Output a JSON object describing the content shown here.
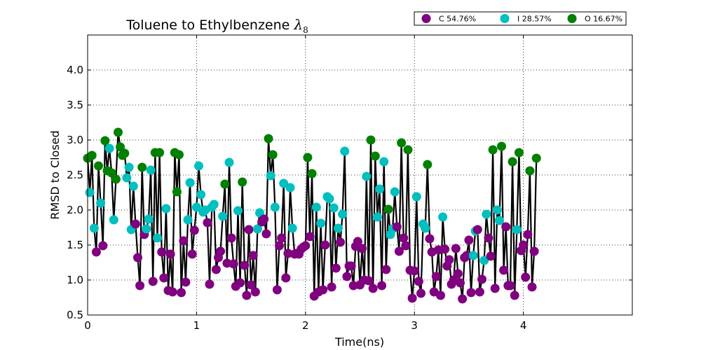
{
  "chart_data": {
    "type": "line",
    "title": "Toluene to Ethylbenzene",
    "title_symbol": "λ",
    "title_subscript": "8",
    "xlabel": "Time(ns)",
    "ylabel": "RMSD to Closed",
    "xlim": [
      0,
      5
    ],
    "ylim": [
      0.5,
      4.5
    ],
    "xticks": [
      0,
      1,
      2,
      3,
      4
    ],
    "yticks": [
      0.5,
      1.0,
      1.5,
      2.0,
      2.5,
      3.0,
      3.5,
      4.0
    ],
    "xtick_labels": [
      "0",
      "1",
      "2",
      "3",
      "4"
    ],
    "ytick_labels": [
      "0.5",
      "1.0",
      "1.5",
      "2.0",
      "2.5",
      "3.0",
      "3.5",
      "4.0"
    ],
    "grid": true,
    "legend_position": "top-right",
    "line_color": "#000000",
    "legend": [
      {
        "label": "C 54.76%",
        "color": "#800080"
      },
      {
        "label": "I 28.57%",
        "color": "#00bfbf"
      },
      {
        "label": "O 16.67%",
        "color": "#008000"
      }
    ],
    "state_colors": {
      "C": "#800080",
      "I": "#00bfbf",
      "O": "#008000"
    },
    "x_step": 0.02,
    "y": [
      2.74,
      2.25,
      2.78,
      1.74,
      1.4,
      2.63,
      2.1,
      1.49,
      2.99,
      2.56,
      2.88,
      2.53,
      1.86,
      2.44,
      3.11,
      2.9,
      2.78,
      2.81,
      2.46,
      2.61,
      1.72,
      2.34,
      1.8,
      1.32,
      0.92,
      2.61,
      1.65,
      1.73,
      1.87,
      2.57,
      0.98,
      2.82,
      1.6,
      2.82,
      1.4,
      1.03,
      2.02,
      0.85,
      1.37,
      0.83,
      2.82,
      2.26,
      2.79,
      0.82,
      1.56,
      0.97,
      1.86,
      2.39,
      1.37,
      1.71,
      2.04,
      2.63,
      2.22,
      1.97,
      2.0,
      1.82,
      0.94,
      2.04,
      2.08,
      1.15,
      1.32,
      1.41,
      1.91,
      2.37,
      1.24,
      2.68,
      1.6,
      1.23,
      0.91,
      1.99,
      0.96,
      2.4,
      1.21,
      0.78,
      1.72,
      0.93,
      1.35,
      0.83,
      1.73,
      1.96,
      1.83,
      1.87,
      1.66,
      3.02,
      2.49,
      2.79,
      2.04,
      0.86,
      1.49,
      1.6,
      2.38,
      1.03,
      1.38,
      2.32,
      1.74,
      1.37,
      1.38,
      1.37,
      1.44,
      1.47,
      1.49,
      2.75,
      1.62,
      2.52,
      0.77,
      2.04,
      0.83,
      1.81,
      0.86,
      1.5,
      2.19,
      2.16,
      0.9,
      2.03,
      1.17,
      1.74,
      1.54,
      1.94,
      2.84,
      1.05,
      1.2,
      1.2,
      0.92,
      1.48,
      1.55,
      0.93,
      1.45,
      1.0,
      2.48,
      0.99,
      3.0,
      0.88,
      2.77,
      1.9,
      2.3,
      0.92,
      2.69,
      1.15,
      2.01,
      1.65,
      1.73,
      2.26,
      1.76,
      1.41,
      2.96,
      1.6,
      1.49,
      2.86,
      1.14,
      0.74,
      1.13,
      2.19,
      0.98,
      0.81,
      1.8,
      1.74,
      2.65,
      1.59,
      1.4,
      0.83,
      1.05,
      1.43,
      0.78,
      1.9,
      1.44,
      1.2,
      1.29,
      0.94,
      1.0,
      1.45,
      1.09,
      0.96,
      0.73,
      1.32,
      1.35,
      1.57,
      0.82,
      1.35,
      1.7,
      1.72,
      0.83,
      1.01,
      1.28,
      1.94,
      1.6,
      1.34,
      2.86,
      0.88,
      2.0,
      1.85,
      2.91,
      1.14,
      1.76,
      0.92,
      0.92,
      2.69,
      0.78,
      1.72,
      2.82,
      1.42,
      1.5,
      1.04,
      1.65,
      2.56,
      0.9,
      1.41,
      2.74
    ],
    "states": [
      "O",
      "I",
      "O",
      "I",
      "C",
      "O",
      "I",
      "C",
      "O",
      "O",
      "I",
      "O",
      "I",
      "O",
      "O",
      "O",
      "O",
      "O",
      "I",
      "I",
      "I",
      "I",
      "C",
      "C",
      "C",
      "O",
      "C",
      "I",
      "I",
      "I",
      "C",
      "O",
      "I",
      "O",
      "C",
      "C",
      "I",
      "C",
      "C",
      "C",
      "O",
      "O",
      "O",
      "C",
      "C",
      "C",
      "I",
      "I",
      "C",
      "C",
      "I",
      "I",
      "I",
      "I",
      "I",
      "C",
      "C",
      "I",
      "I",
      "C",
      "C",
      "C",
      "I",
      "O",
      "C",
      "I",
      "C",
      "C",
      "C",
      "I",
      "C",
      "O",
      "C",
      "C",
      "C",
      "C",
      "C",
      "C",
      "I",
      "I",
      "C",
      "C",
      "C",
      "O",
      "I",
      "O",
      "I",
      "C",
      "C",
      "C",
      "I",
      "C",
      "C",
      "I",
      "I",
      "C",
      "C",
      "C",
      "C",
      "C",
      "C",
      "O",
      "C",
      "O",
      "C",
      "I",
      "C",
      "I",
      "C",
      "C",
      "I",
      "I",
      "C",
      "I",
      "C",
      "I",
      "C",
      "I",
      "I",
      "C",
      "C",
      "C",
      "C",
      "C",
      "C",
      "C",
      "C",
      "C",
      "I",
      "C",
      "O",
      "C",
      "O",
      "I",
      "I",
      "C",
      "I",
      "C",
      "O",
      "I",
      "I",
      "I",
      "C",
      "C",
      "O",
      "C",
      "C",
      "O",
      "C",
      "C",
      "C",
      "I",
      "C",
      "C",
      "I",
      "I",
      "O",
      "C",
      "C",
      "C",
      "C",
      "C",
      "C",
      "I",
      "C",
      "C",
      "C",
      "C",
      "C",
      "C",
      "C",
      "C",
      "C",
      "C",
      "C",
      "C",
      "C",
      "I",
      "I",
      "C",
      "C",
      "C",
      "I",
      "I",
      "C",
      "C",
      "O",
      "C",
      "I",
      "I",
      "O",
      "C",
      "C",
      "C",
      "C",
      "O",
      "C",
      "I",
      "O",
      "C",
      "C",
      "C",
      "C",
      "O",
      "C",
      "C",
      "O"
    ]
  }
}
